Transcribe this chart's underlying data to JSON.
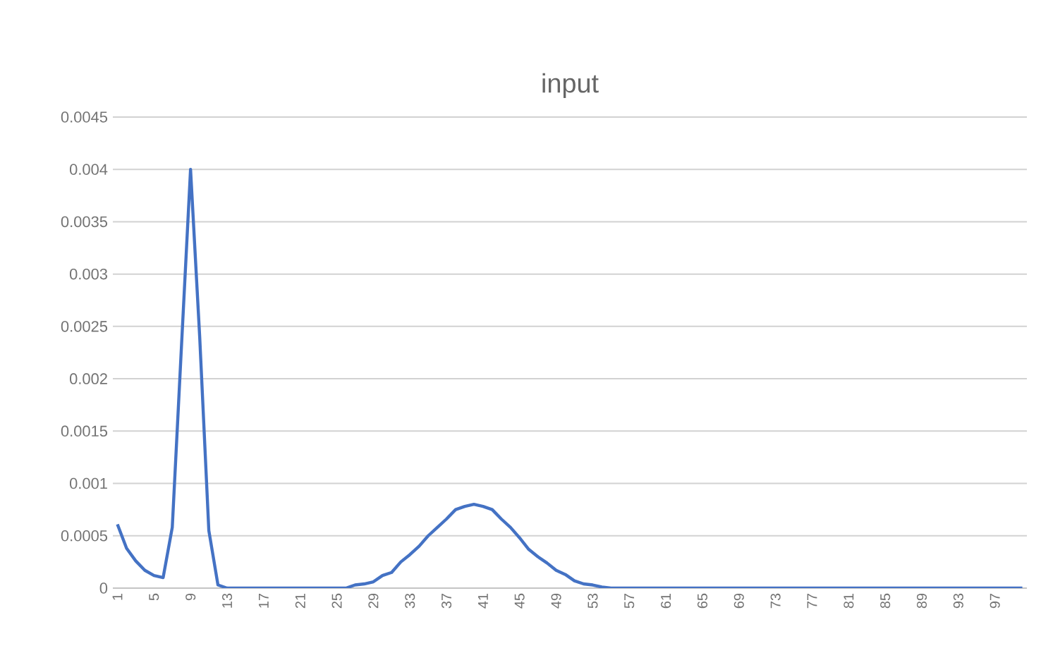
{
  "chart_data": {
    "type": "line",
    "title": "input",
    "categories": [
      "1",
      null,
      null,
      null,
      "5",
      null,
      null,
      null,
      "9",
      null,
      null,
      null,
      "13",
      null,
      null,
      null,
      "17",
      null,
      null,
      null,
      "21",
      null,
      null,
      null,
      "25",
      null,
      null,
      null,
      "29",
      null,
      null,
      null,
      "33",
      null,
      null,
      null,
      "37",
      null,
      null,
      null,
      "41",
      null,
      null,
      null,
      "45",
      null,
      null,
      null,
      "49",
      null,
      null,
      null,
      "53",
      null,
      null,
      null,
      "57",
      null,
      null,
      null,
      "61",
      null,
      null,
      null,
      "65",
      null,
      null,
      null,
      "69",
      null,
      null,
      null,
      "73",
      null,
      null,
      null,
      "77",
      null,
      null,
      null,
      "81",
      null,
      null,
      null,
      "85",
      null,
      null,
      null,
      "89",
      null,
      null,
      null,
      "93",
      null,
      null,
      null,
      "97",
      null,
      null,
      null
    ],
    "series": [
      {
        "color": "#4472c4",
        "values": [
          0.00061,
          0.00038,
          0.00026,
          0.00017,
          0.00012,
          0.0001,
          0.00058,
          0.0023,
          0.004,
          0.0024,
          0.00055,
          3e-05,
          0,
          0,
          0,
          0,
          0,
          0,
          0,
          0,
          0,
          0,
          0,
          0,
          0,
          0,
          3e-05,
          4e-05,
          6e-05,
          0.00012,
          0.00015,
          0.00025,
          0.00032,
          0.0004,
          0.0005,
          0.00058,
          0.00066,
          0.00075,
          0.00078,
          0.0008,
          0.00078,
          0.00075,
          0.00066,
          0.00058,
          0.00048,
          0.00037,
          0.0003,
          0.00024,
          0.00017,
          0.00013,
          7e-05,
          4e-05,
          3e-05,
          1e-05,
          0,
          0,
          0,
          0,
          0,
          0,
          0,
          0,
          0,
          0,
          0,
          0,
          0,
          0,
          0,
          0,
          0,
          0,
          0,
          0,
          0,
          0,
          0,
          0,
          0,
          0,
          0,
          0,
          0,
          0,
          0,
          0,
          0,
          0,
          0,
          0,
          0,
          0,
          0,
          0,
          0,
          0,
          0,
          0,
          0,
          0
        ]
      }
    ],
    "ylim": [
      0,
      0.0045
    ],
    "yticks": [
      0,
      0.0005,
      0.001,
      0.0015,
      0.002,
      0.0025,
      0.003,
      0.0035,
      0.004,
      0.0045
    ],
    "grid": "y",
    "marker": "none",
    "line_style": "solid"
  }
}
